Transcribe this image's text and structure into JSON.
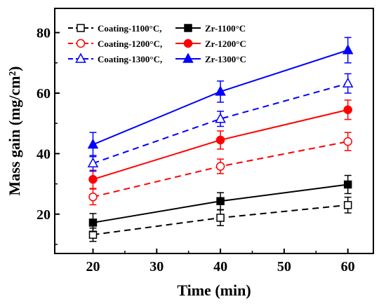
{
  "chart_data": {
    "type": "line",
    "xlabel": "Time (min)",
    "ylabel": "Mass gain (mg/cm²)",
    "x": [
      20,
      40,
      60
    ],
    "xlim": [
      14,
      64
    ],
    "ylim": [
      7,
      88
    ],
    "xticks": [
      20,
      30,
      40,
      50,
      60
    ],
    "yticks": [
      20,
      40,
      60,
      80
    ],
    "legend_position": "top",
    "series": [
      {
        "name": "Coating-1100°C,",
        "color": "#000000",
        "dash": true,
        "marker": "square-open",
        "values": [
          13.2,
          18.8,
          23.0
        ],
        "errors": [
          2.2,
          2.6,
          2.6
        ]
      },
      {
        "name": "Zr-1100°C",
        "color": "#000000",
        "dash": false,
        "marker": "square-filled",
        "values": [
          17.2,
          24.3,
          29.8
        ],
        "errors": [
          3.0,
          2.8,
          3.0
        ]
      },
      {
        "name": "Coating-1200°C,",
        "color": "#ff0000",
        "dash": true,
        "marker": "circle-open",
        "values": [
          25.7,
          35.8,
          44.0
        ],
        "errors": [
          2.6,
          2.4,
          3.0
        ]
      },
      {
        "name": "Zr-1200°C",
        "color": "#ff0000",
        "dash": false,
        "marker": "circle-filled",
        "values": [
          31.5,
          44.5,
          54.5
        ],
        "errors": [
          3.0,
          3.0,
          3.2
        ]
      },
      {
        "name": "Coating-1300°C,",
        "color": "#0000ff",
        "dash": true,
        "marker": "triangle-open",
        "values": [
          36.8,
          51.5,
          63.2
        ],
        "errors": [
          2.6,
          2.5,
          3.2
        ]
      },
      {
        "name": "Zr-1300°C",
        "color": "#0000ff",
        "dash": false,
        "marker": "triangle-filled",
        "values": [
          43.0,
          60.5,
          74.2
        ],
        "errors": [
          4.0,
          3.5,
          4.2
        ]
      }
    ]
  }
}
